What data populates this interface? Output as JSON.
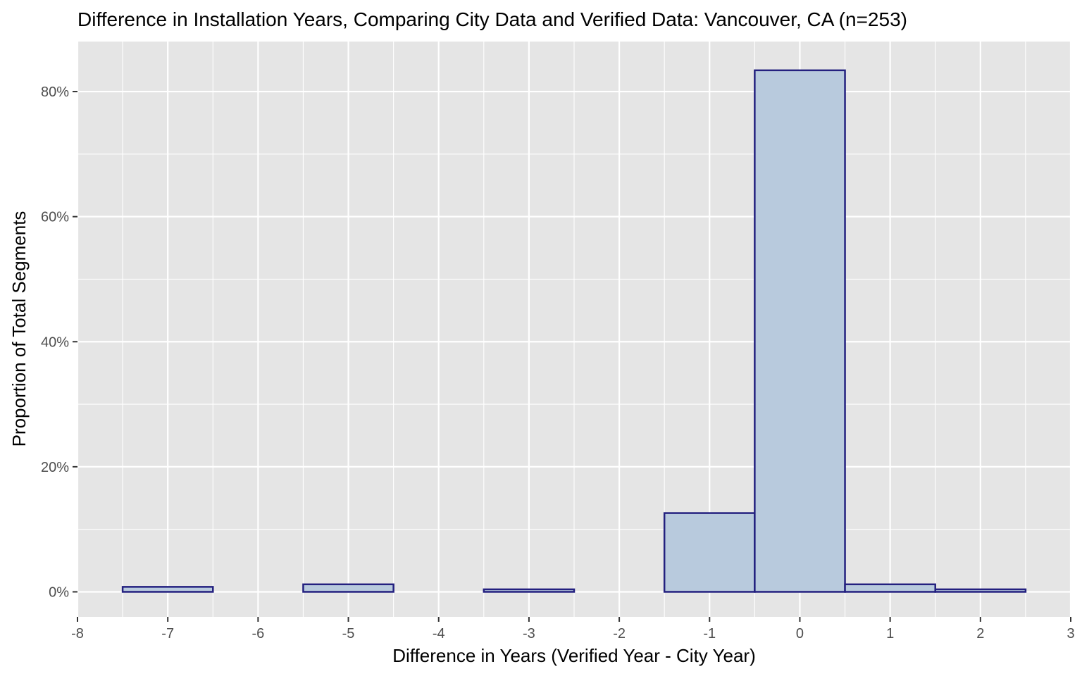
{
  "chart_data": {
    "type": "bar",
    "title": "Difference in Installation Years, Comparing City Data and Verified Data: Vancouver, CA (n=253)",
    "xlabel": "Difference in Years (Verified Year - City Year)",
    "ylabel": "Proportion of Total Segments",
    "xlim": [
      -8,
      3
    ],
    "ylim": [
      -4,
      88
    ],
    "x_ticks": [
      -8,
      -7,
      -6,
      -5,
      -4,
      -3,
      -2,
      -1,
      0,
      1,
      2,
      3
    ],
    "x_tick_labels": [
      "-8",
      "-7",
      "-6",
      "-5",
      "-4",
      "-3",
      "-2",
      "-1",
      "0",
      "1",
      "2",
      "3"
    ],
    "y_ticks": [
      0,
      20,
      40,
      60,
      80
    ],
    "y_tick_labels": [
      "0%",
      "20%",
      "40%",
      "60%",
      "80%"
    ],
    "y_minor_ticks": [
      10,
      30,
      50,
      70
    ],
    "bin_width": 1,
    "bins": [
      {
        "x": -7,
        "value": 0.8
      },
      {
        "x": -5,
        "value": 1.2
      },
      {
        "x": -3,
        "value": 0.4
      },
      {
        "x": -1,
        "value": 12.6
      },
      {
        "x": 0,
        "value": 83.4
      },
      {
        "x": 1,
        "value": 1.2
      },
      {
        "x": 2,
        "value": 0.4
      }
    ],
    "grid": true,
    "colors": {
      "panel_background": "#e5e5e5",
      "grid": "#ffffff",
      "bar_fill": "#b8cadd",
      "bar_outline": "#23207f"
    }
  }
}
